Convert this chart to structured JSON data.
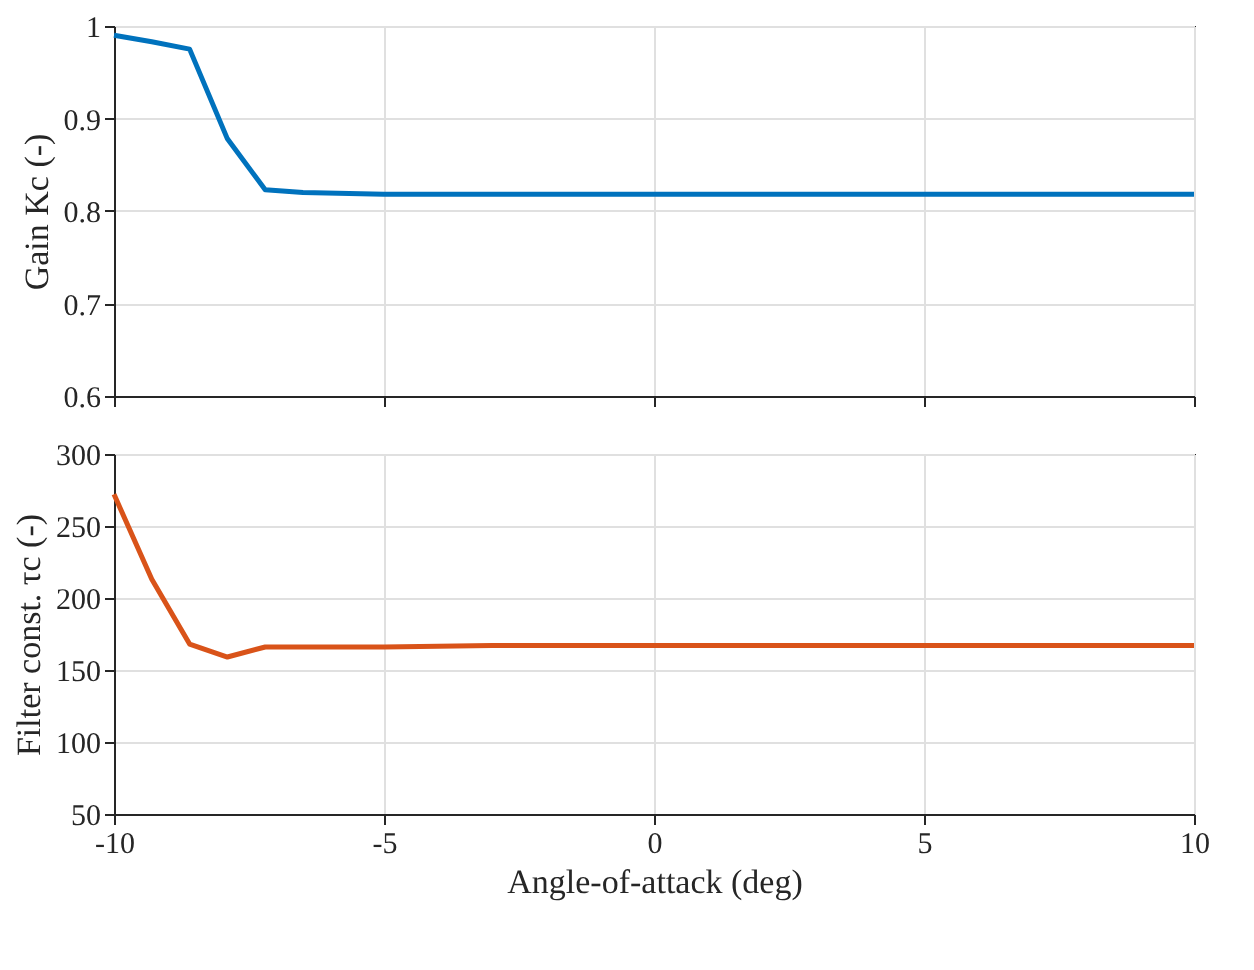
{
  "chart_data": [
    {
      "type": "line",
      "ylabel": "Gain Kc (-)",
      "x": [
        -10,
        -9.3,
        -8.6,
        -7.9,
        -7.2,
        -6.5,
        -5,
        -3,
        10
      ],
      "series": [
        {
          "color": "#0072bd",
          "values": [
            0.99,
            0.983,
            0.975,
            0.878,
            0.823,
            0.82,
            0.818,
            0.818,
            0.818
          ]
        }
      ],
      "xlim": [
        -10,
        10
      ],
      "xticks": [
        -10,
        -5,
        0,
        5,
        10
      ],
      "ylim": [
        0.6,
        1
      ],
      "yticks": [
        0.6,
        0.7,
        0.8,
        0.9,
        {
          "value": 1,
          "label": "1"
        }
      ],
      "grid": true,
      "tick_labels": "y",
      "line_style": "solid"
    },
    {
      "type": "line",
      "xlabel": "Angle-of-attack (deg)",
      "ylabel": "Filter const. τc (-)",
      "x": [
        -10,
        -9.3,
        -8.6,
        -7.9,
        -7.2,
        -6.5,
        -5,
        -3,
        10
      ],
      "series": [
        {
          "color": "#d95319",
          "values": [
            272,
            213,
            168,
            159,
            166,
            166,
            166,
            167,
            167
          ]
        }
      ],
      "xlim": [
        -10,
        10
      ],
      "xticks": [
        -10,
        -5,
        0,
        5,
        10
      ],
      "ylim": [
        50,
        300
      ],
      "yticks": [
        50,
        100,
        150,
        200,
        250,
        300
      ],
      "grid": true,
      "line_style": "solid"
    }
  ]
}
